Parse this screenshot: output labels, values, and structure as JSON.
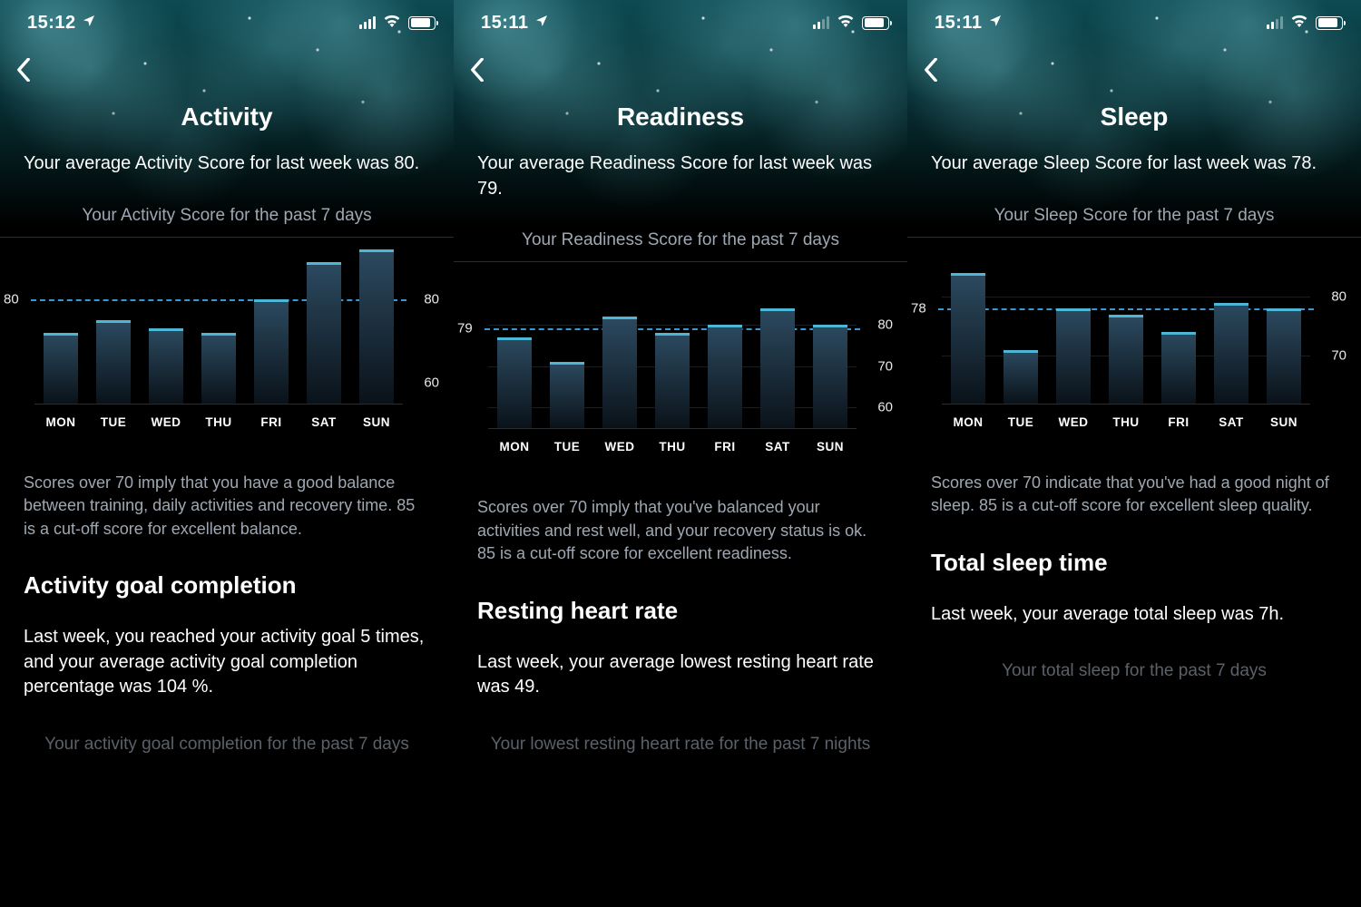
{
  "colors": {
    "bg": "#000000",
    "text": "#ffffff",
    "muted": "#9fa8b2",
    "faded": "#5b6168",
    "divider": "#2a2d30",
    "bar_fill_top": "#2c4a60",
    "bar_fill_bottom": "#0a1219",
    "bar_cap": "#4fb7d6",
    "avg_dash": "#3a97d4"
  },
  "typography": {
    "title_pt": 28,
    "body_pt": 20,
    "sub_pt": 19,
    "note_pt": 18,
    "xlabel_pt": 13.5
  },
  "panels": [
    {
      "status_time": "15:12",
      "signal_low": false,
      "battery_pct": 90,
      "title": "Activity",
      "summary": "Your average Activity Score for last week was 80.",
      "subhead": "Your Activity Score for the past 7 days",
      "chart": {
        "type": "bar",
        "categories": [
          "MON",
          "TUE",
          "WED",
          "THU",
          "FRI",
          "SAT",
          "SUN"
        ],
        "values": [
          72,
          75,
          73,
          72,
          80,
          89,
          92
        ],
        "ymin": 55,
        "ymax": 95,
        "avg_value": 80,
        "avg_label": "80",
        "yticks": [
          {
            "v": 80,
            "label": "80"
          },
          {
            "v": 60,
            "label": "60"
          }
        ],
        "show_gridlines_at": []
      },
      "note": "Scores over 70 imply that you have a good balance between training, daily activities and recovery time. 85 is a cut-off score for excellent balance.",
      "section_title": "Activity goal completion",
      "section_body": "Last week, you reached your activity goal 5 times, and your average activity goal completion percentage was 104 %.",
      "faded_sub": "Your activity goal completion for the past 7 days"
    },
    {
      "status_time": "15:11",
      "signal_low": true,
      "battery_pct": 90,
      "title": "Readiness",
      "summary": "Your average Readiness Score for last week was 79.",
      "subhead": "Your Readiness Score for the past 7 days",
      "chart": {
        "type": "bar",
        "categories": [
          "MON",
          "TUE",
          "WED",
          "THU",
          "FRI",
          "SAT",
          "SUN"
        ],
        "values": [
          77,
          71,
          82,
          78,
          80,
          84,
          80
        ],
        "ymin": 55,
        "ymax": 95,
        "avg_value": 79,
        "avg_label": "79",
        "yticks": [
          {
            "v": 80,
            "label": "80"
          },
          {
            "v": 70,
            "label": "70"
          },
          {
            "v": 60,
            "label": "60"
          }
        ],
        "show_gridlines_at": [
          80,
          70,
          60
        ]
      },
      "note": "Scores over 70 imply that you've balanced your activities and rest well, and your recovery status is ok. 85 is a cut-off score for excellent readiness.",
      "section_title": "Resting heart rate",
      "section_body": "Last week, your average lowest resting heart rate was 49.",
      "faded_sub": "Your lowest resting heart rate for the past 7 nights"
    },
    {
      "status_time": "15:11",
      "signal_low": true,
      "battery_pct": 90,
      "title": "Sleep",
      "summary": "Your average Sleep Score for last week was 78.",
      "subhead": "Your Sleep Score for the past 7 days",
      "chart": {
        "type": "bar",
        "categories": [
          "MON",
          "TUE",
          "WED",
          "THU",
          "FRI",
          "SAT",
          "SUN"
        ],
        "values": [
          84,
          71,
          78,
          77,
          74,
          79,
          78
        ],
        "ymin": 62,
        "ymax": 90,
        "avg_value": 78,
        "avg_label": "78",
        "yticks": [
          {
            "v": 80,
            "label": "80"
          },
          {
            "v": 70,
            "label": "70"
          }
        ],
        "show_gridlines_at": [
          80,
          70
        ]
      },
      "note": "Scores over 70 indicate that you've had a good night of sleep. 85 is a cut-off score for excellent sleep quality.",
      "section_title": "Total sleep time",
      "section_body": "Last week, your average total sleep was 7h.",
      "faded_sub": "Your total sleep for the past 7 days"
    }
  ]
}
